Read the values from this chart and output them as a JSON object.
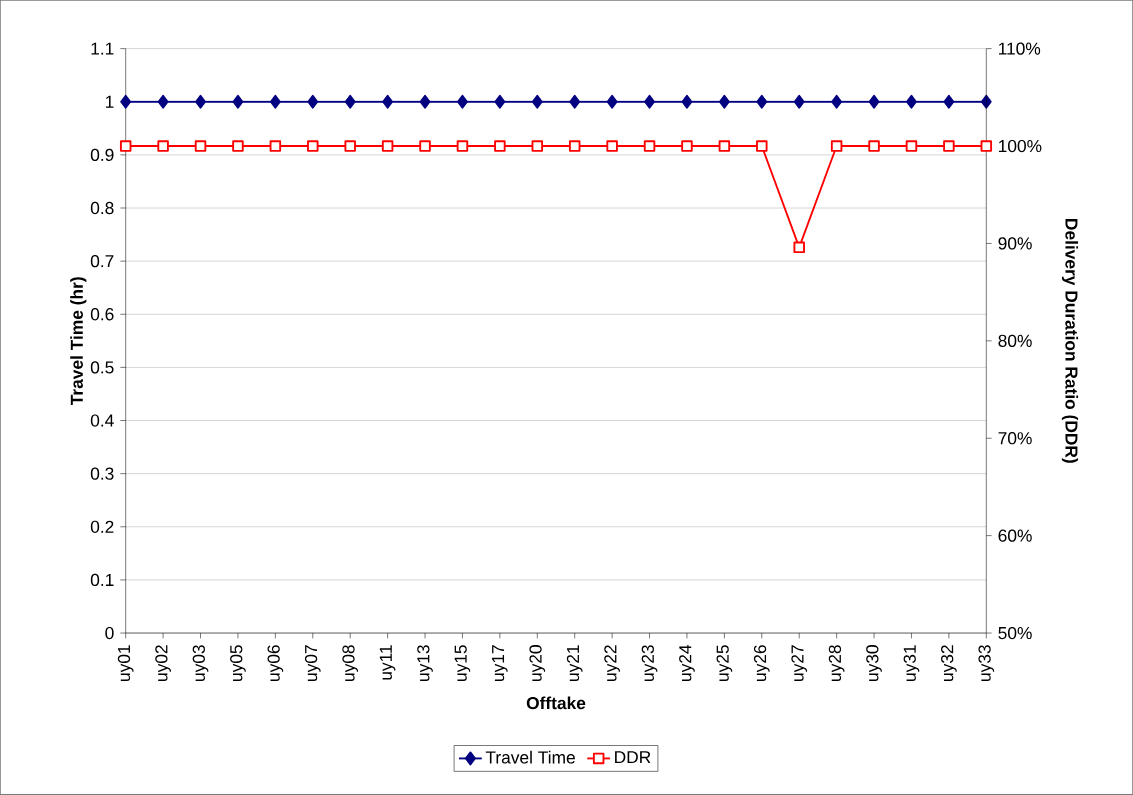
{
  "chart_data": {
    "type": "line",
    "xlabel": "Offtake",
    "ylabel": "Travel Time (hr)",
    "y2label": "Delivery Duration Ratio (DDR)",
    "categories": [
      "uy01",
      "uy02",
      "uy03",
      "uy05",
      "uy06",
      "uy07",
      "uy08",
      "uy11",
      "uy13",
      "uy15",
      "uy17",
      "uy20",
      "uy21",
      "uy22",
      "uy23",
      "uy24",
      "uy25",
      "uy26",
      "uy27",
      "uy28",
      "uy30",
      "uy31",
      "uy32",
      "uy33"
    ],
    "series": [
      {
        "name": "Travel Time",
        "color": "#000080",
        "marker": "diamond",
        "values": [
          1,
          1,
          1,
          1,
          1,
          1,
          1,
          1,
          1,
          1,
          1,
          1,
          1,
          1,
          1,
          1,
          1,
          1,
          1,
          1,
          1,
          1,
          1,
          1
        ]
      },
      {
        "name": "DDR",
        "color": "#ff0000",
        "marker": "square",
        "axis": "y2",
        "values": [
          100,
          100,
          100,
          100,
          100,
          100,
          100,
          100,
          100,
          100,
          100,
          100,
          100,
          100,
          100,
          100,
          100,
          100,
          89.6,
          100,
          100,
          100,
          100,
          100
        ]
      }
    ],
    "ylim": [
      0,
      1.1
    ],
    "yticks": [
      0,
      0.1,
      0.2,
      0.3,
      0.4,
      0.5,
      0.6,
      0.7,
      0.8,
      0.9,
      1,
      1.1
    ],
    "y2lim": [
      50,
      110
    ],
    "y2ticks": [
      {
        "value": 50,
        "label": "50%"
      },
      {
        "value": 60,
        "label": "60%"
      },
      {
        "value": 70,
        "label": "70%"
      },
      {
        "value": 80,
        "label": "80%"
      },
      {
        "value": 90,
        "label": "90%"
      },
      {
        "value": 100,
        "label": "100%"
      },
      {
        "value": 110,
        "label": "110%"
      }
    ],
    "grid": "y",
    "legend": "bottom"
  }
}
